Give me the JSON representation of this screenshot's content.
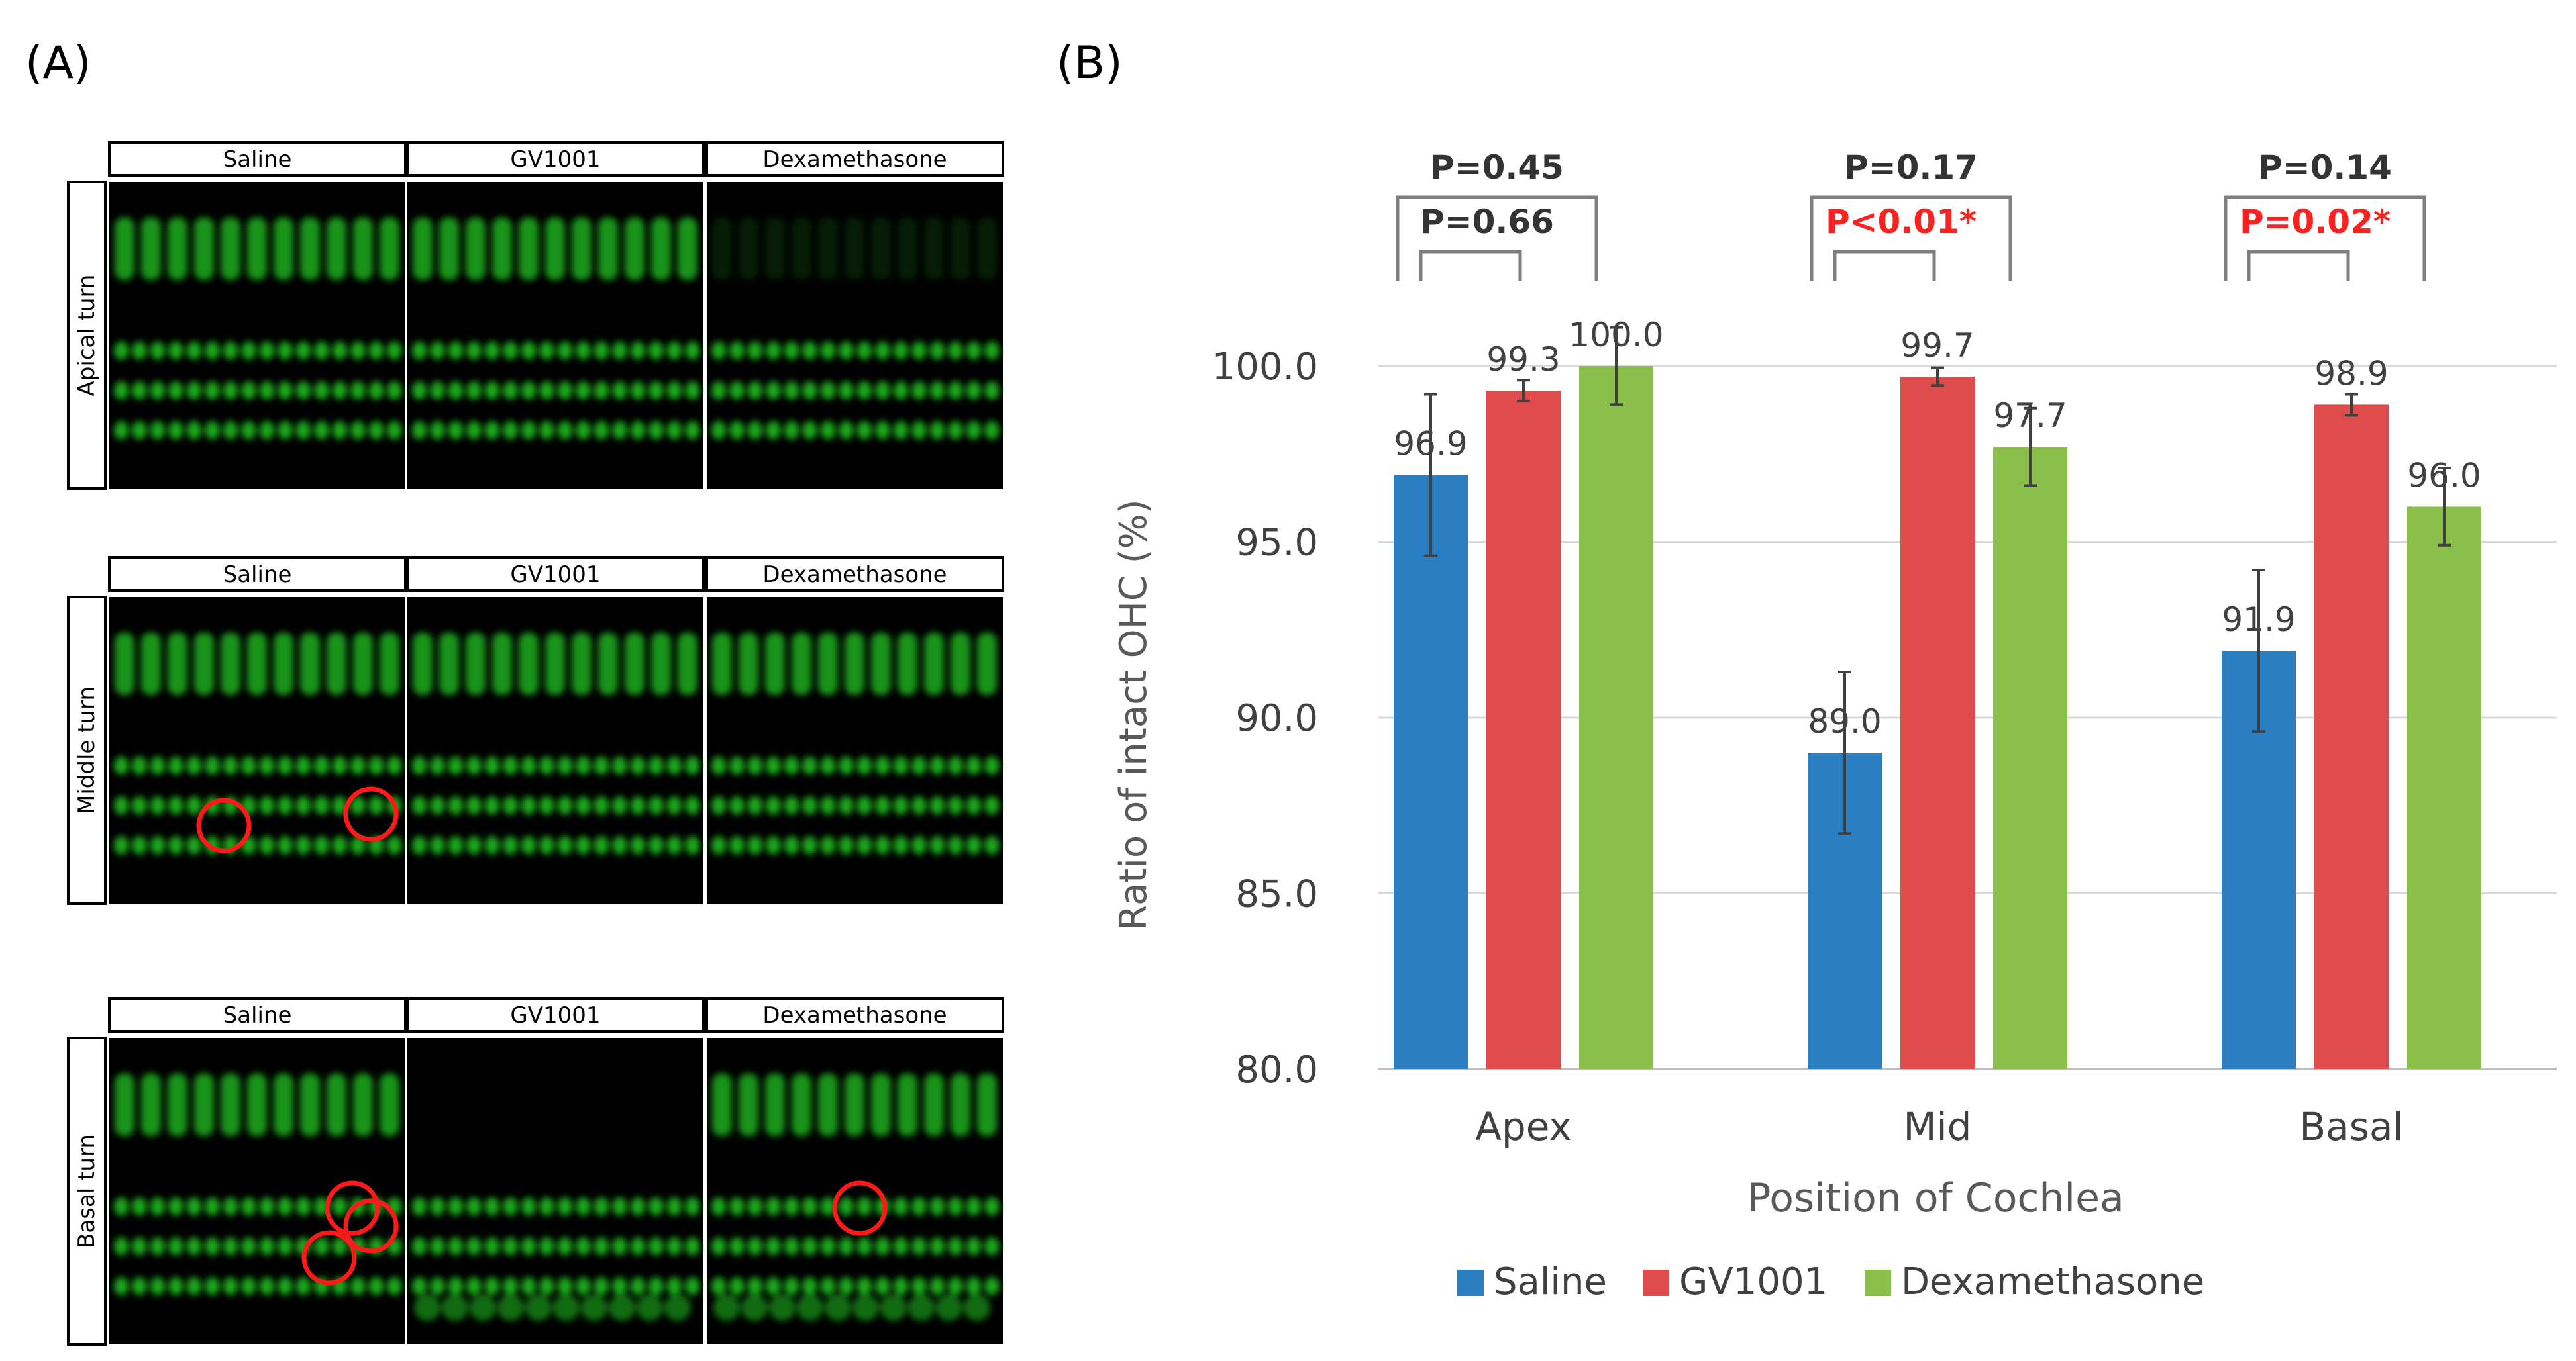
{
  "panel_a": {
    "label": "(A)",
    "columns": [
      "Saline",
      "GV1001",
      "Dexamethasone"
    ],
    "rows": [
      {
        "label": "Apical turn"
      },
      {
        "label": "Middle turn"
      },
      {
        "label": "Basal turn"
      }
    ],
    "colors": {
      "fluorescence": "#22c422",
      "highlight": "#ff1a1a",
      "background": "#000000"
    }
  },
  "panel_b": {
    "label": "(B)"
  },
  "chart_data": {
    "type": "bar",
    "title": "",
    "xlabel": "Position of Cochlea",
    "ylabel": "Ratio of intact OHC (%)",
    "ylim": [
      80,
      100
    ],
    "yticks": [
      "80.0",
      "85.0",
      "90.0",
      "95.0",
      "100.0"
    ],
    "categories": [
      "Apex",
      "Mid",
      "Basal"
    ],
    "series": [
      {
        "name": "Saline",
        "color": "#2a7fc2",
        "values": [
          96.9,
          89.0,
          91.9
        ],
        "labels": [
          "96.9",
          "89.0",
          "91.9"
        ],
        "errors": [
          2.3,
          2.3,
          2.3
        ]
      },
      {
        "name": "GV1001",
        "color": "#e04b4b",
        "values": [
          99.3,
          99.7,
          98.9
        ],
        "labels": [
          "99.3",
          "99.7",
          "98.9"
        ],
        "errors": [
          0.3,
          0.25,
          0.3
        ]
      },
      {
        "name": "Dexamethasone",
        "color": "#8bbf4b",
        "values": [
          100.0,
          97.7,
          96.0
        ],
        "labels": [
          "100.0",
          "97.7",
          "96.0"
        ],
        "errors": [
          1.1,
          1.1,
          1.1
        ]
      }
    ],
    "legend_position": "bottom",
    "grid": true,
    "annotations": [
      {
        "category": "Apex",
        "outer": "P=0.45",
        "inner": "P=0.66",
        "inner_significant": false
      },
      {
        "category": "Mid",
        "outer": "P=0.17",
        "inner": "P<0.01*",
        "inner_significant": true
      },
      {
        "category": "Basal",
        "outer": "P=0.14",
        "inner": "P=0.02*",
        "inner_significant": true
      }
    ],
    "colors": {
      "text": "#333333",
      "grid": "#d9d9d9",
      "significant": "#ff2020",
      "bracket": "#7f7f7f",
      "errorbar": "#404040"
    }
  }
}
